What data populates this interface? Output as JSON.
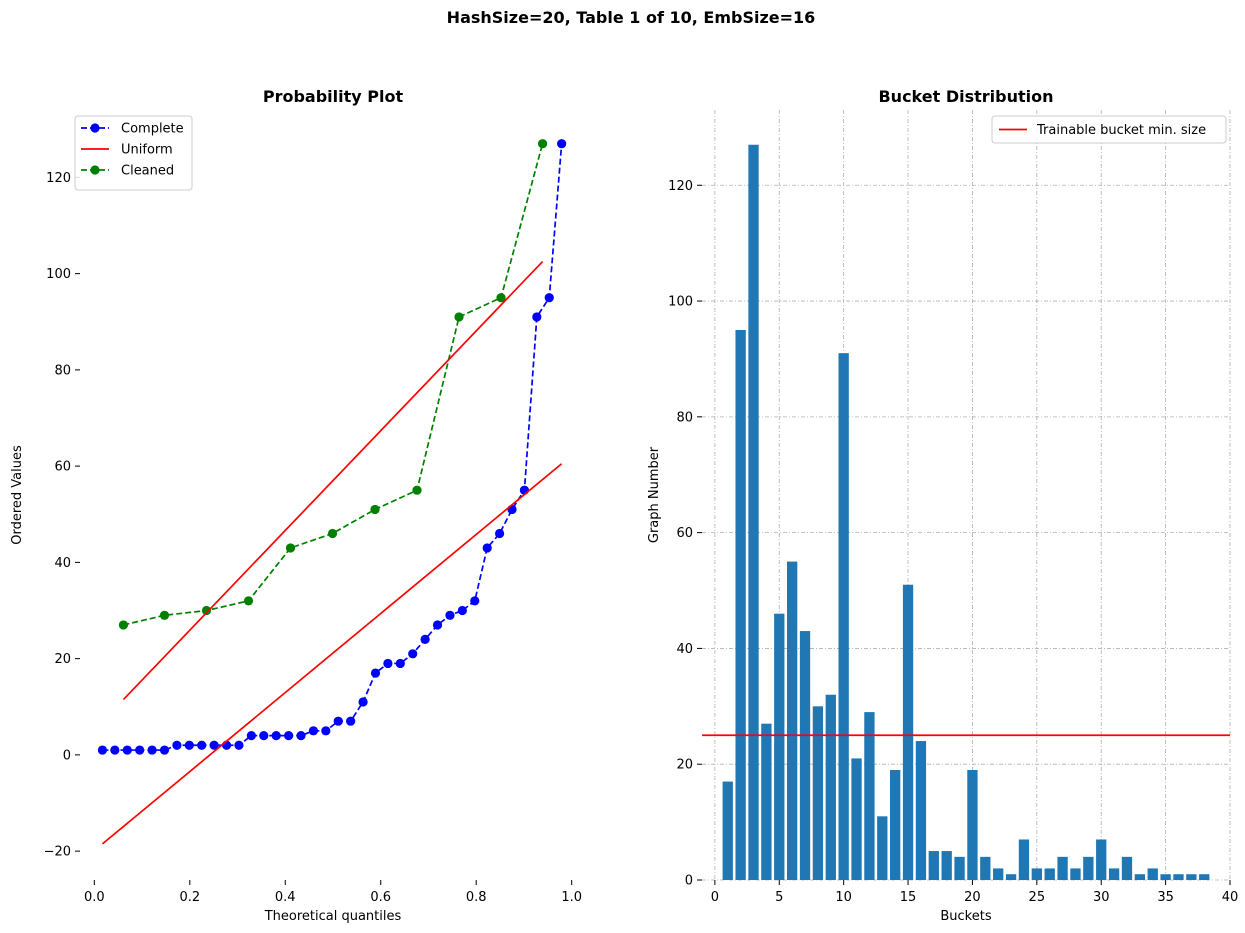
{
  "suptitle": "HashSize=20, Table 1 of 10, EmbSize=16",
  "colors": {
    "complete": "#0000ff",
    "cleaned": "#008000",
    "uniform": "#ff0000",
    "bar": "#1f77b4",
    "threshold": "#ff0000",
    "grid": "#b0b0b0"
  },
  "chart_data": [
    {
      "type": "line",
      "title": "Probability Plot",
      "xlabel": "Theoretical quantiles",
      "ylabel": "Ordered Values",
      "xlim": [
        -0.03,
        1.03
      ],
      "ylim": [
        -26,
        134
      ],
      "xticks": [
        0.0,
        0.2,
        0.4,
        0.6,
        0.8,
        1.0
      ],
      "xtick_labels": [
        "0.0",
        "0.2",
        "0.4",
        "0.6",
        "0.8",
        "1.0"
      ],
      "yticks": [
        -20,
        0,
        20,
        40,
        60,
        80,
        100,
        120
      ],
      "ytick_labels": [
        "−20",
        "0",
        "20",
        "40",
        "60",
        "80",
        "100",
        "120"
      ],
      "grid": false,
      "legend_position": "top-left",
      "series": [
        {
          "name": "Complete",
          "style": "dashed-markers",
          "color": "#0000ff",
          "x": [
            0.017,
            0.043,
            0.069,
            0.095,
            0.121,
            0.147,
            0.173,
            0.199,
            0.225,
            0.251,
            0.277,
            0.303,
            0.329,
            0.355,
            0.381,
            0.407,
            0.433,
            0.459,
            0.485,
            0.511,
            0.537,
            0.563,
            0.589,
            0.615,
            0.641,
            0.667,
            0.693,
            0.719,
            0.745,
            0.771,
            0.797,
            0.823,
            0.849,
            0.875,
            0.901,
            0.927,
            0.953,
            0.979
          ],
          "y": [
            1,
            1,
            1,
            1,
            1,
            1,
            2,
            2,
            2,
            2,
            2,
            2,
            4,
            4,
            4,
            4,
            4,
            5,
            5,
            7,
            7,
            11,
            17,
            19,
            19,
            21,
            24,
            27,
            29,
            30,
            32,
            43,
            46,
            51,
            55,
            91,
            95,
            127
          ]
        },
        {
          "name": "Uniform",
          "style": "solid",
          "color": "#ff0000",
          "x": [
            0.017,
            0.979
          ],
          "y": [
            -18.5,
            60.5
          ]
        },
        {
          "name": "Cleaned",
          "style": "dashed-markers",
          "color": "#008000",
          "x": [
            0.061,
            0.147,
            0.235,
            0.323,
            0.411,
            0.499,
            0.588,
            0.676,
            0.764,
            0.852,
            0.939
          ],
          "y": [
            27,
            29,
            30,
            32,
            43,
            46,
            51,
            55,
            91,
            95,
            127
          ]
        },
        {
          "name": "",
          "style": "solid",
          "color": "#ff0000",
          "x": [
            0.061,
            0.939
          ],
          "y": [
            11.5,
            102.5
          ]
        }
      ]
    },
    {
      "type": "bar",
      "title": "Bucket Distribution",
      "xlabel": "Buckets",
      "ylabel": "Graph Number",
      "xlim": [
        -1,
        40
      ],
      "ylim": [
        0,
        133
      ],
      "xticks": [
        0,
        5,
        10,
        15,
        20,
        25,
        30,
        35,
        40
      ],
      "xtick_labels": [
        "0",
        "5",
        "10",
        "15",
        "20",
        "25",
        "30",
        "35",
        "40"
      ],
      "yticks": [
        0,
        20,
        40,
        60,
        80,
        100,
        120
      ],
      "ytick_labels": [
        "0",
        "20",
        "40",
        "60",
        "80",
        "100",
        "120"
      ],
      "grid": true,
      "legend_position": "top-right",
      "categories": [
        1,
        2,
        3,
        4,
        5,
        6,
        7,
        8,
        9,
        10,
        11,
        12,
        13,
        14,
        15,
        16,
        17,
        18,
        19,
        20,
        21,
        22,
        23,
        24,
        25,
        26,
        27,
        28,
        29,
        30,
        31,
        32,
        33,
        34,
        35,
        36,
        37,
        38
      ],
      "values": [
        17,
        95,
        127,
        27,
        46,
        55,
        43,
        30,
        32,
        91,
        21,
        29,
        11,
        19,
        51,
        24,
        5,
        5,
        4,
        19,
        4,
        2,
        1,
        7,
        2,
        2,
        4,
        2,
        4,
        7,
        2,
        4,
        1,
        2,
        1,
        1,
        1,
        1
      ],
      "threshold": {
        "name": "Trainable bucket min. size",
        "value": 25
      }
    }
  ]
}
